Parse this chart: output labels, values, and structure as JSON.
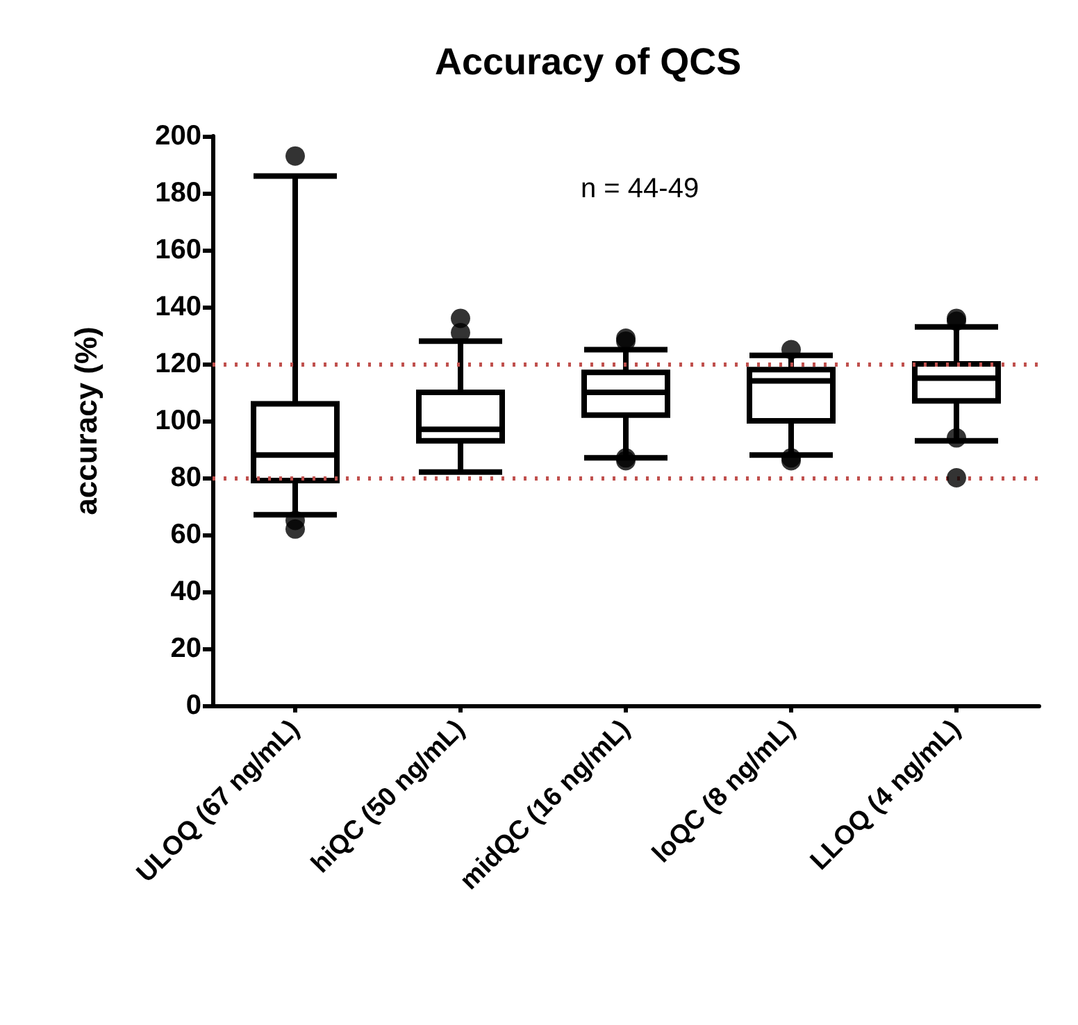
{
  "chart_data": {
    "type": "box",
    "title": "Accuracy of QCS",
    "ylabel": "accuracy (%)",
    "categories": [
      "ULOQ (67 ng/mL)",
      "hiQC (50 ng/mL)",
      "midQC (16 ng/mL)",
      "loQC (8 ng/mL)",
      "LLOQ (4 ng/mL)"
    ],
    "boxes": [
      {
        "low": 67,
        "q1": 79,
        "median": 88,
        "q3": 106,
        "high": 186,
        "outliers": [
          193,
          62,
          65
        ]
      },
      {
        "low": 82,
        "q1": 93,
        "median": 97,
        "q3": 110,
        "high": 128,
        "outliers": [
          131,
          136
        ]
      },
      {
        "low": 87,
        "q1": 102,
        "median": 110,
        "q3": 117,
        "high": 125,
        "outliers": [
          128,
          129,
          86,
          87
        ]
      },
      {
        "low": 88,
        "q1": 100,
        "median": 114,
        "q3": 118,
        "high": 123,
        "outliers": [
          125,
          86,
          87
        ]
      },
      {
        "low": 93,
        "q1": 107,
        "median": 115,
        "q3": 120,
        "high": 133,
        "outliers": [
          135,
          136,
          94,
          80
        ]
      }
    ],
    "color": "#000000",
    "ylim": [
      0,
      200
    ],
    "yticks": [
      0,
      20,
      40,
      60,
      80,
      100,
      120,
      140,
      160,
      180,
      200
    ],
    "ref_lines": [
      {
        "axis": "y",
        "value": 120,
        "color": "#c0504d",
        "line_style": "dotted"
      },
      {
        "axis": "y",
        "value": 80,
        "color": "#c0504d",
        "line_style": "dotted"
      }
    ],
    "annotations": [
      "n = 44-49"
    ]
  }
}
